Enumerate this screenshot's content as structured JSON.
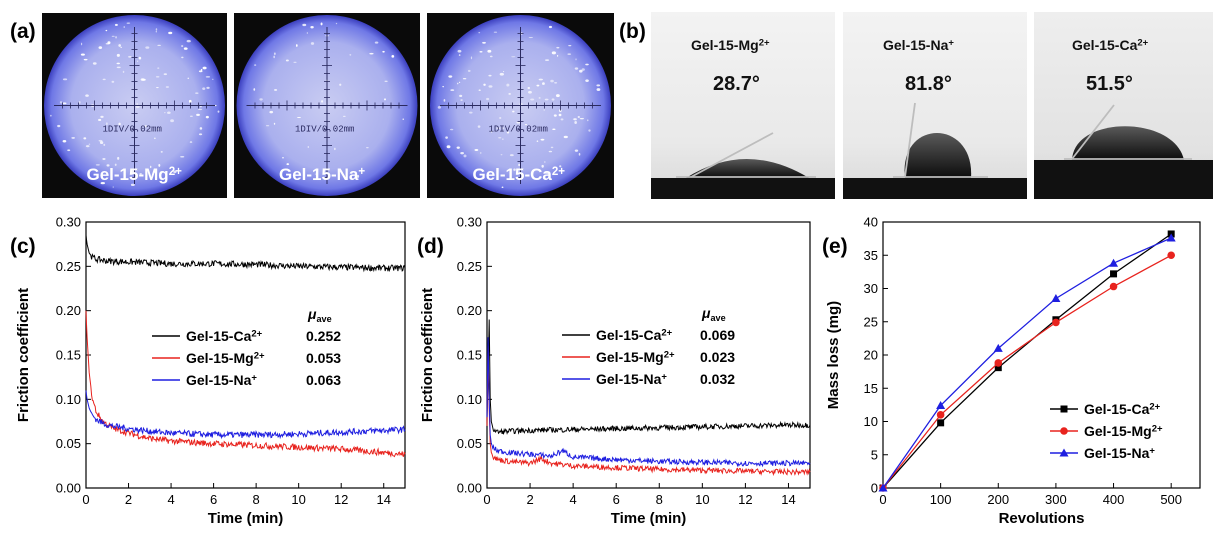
{
  "panel_labels": [
    "(a)",
    "(b)",
    "(c)",
    "(d)",
    "(e)"
  ],
  "panel_a": {
    "images": [
      {
        "label_base": "Gel-15-Mg",
        "label_sup": "2+",
        "scale": "1DIV/0.02mm"
      },
      {
        "label_base": "Gel-15-Na",
        "label_sup": "+",
        "scale": "1DIV/0.02mm"
      },
      {
        "label_base": "Gel-15-Ca",
        "label_sup": "2+",
        "scale": "1DIV/0.02mm"
      }
    ]
  },
  "panel_b": {
    "images": [
      {
        "label_base": "Gel-15-Mg",
        "label_sup": "2+",
        "angle": "28.7°"
      },
      {
        "label_base": "Gel-15-Na",
        "label_sup": "+",
        "angle": "81.8°"
      },
      {
        "label_base": "Gel-15-Ca",
        "label_sup": "2+",
        "angle": "51.5°"
      }
    ]
  },
  "colors": {
    "ca": "#000000",
    "mg": "#e8231e",
    "na": "#1f1fe0"
  },
  "chart_data": [
    {
      "panel": "(c)",
      "type": "line",
      "xlabel": "Time (min)",
      "ylabel": "Friction coefficient",
      "xlim": [
        0,
        15
      ],
      "ylim": [
        0.0,
        0.3
      ],
      "xticks": [
        "0",
        "2",
        "4",
        "6",
        "8",
        "10",
        "12",
        "14"
      ],
      "yticks": [
        "0.00",
        "0.05",
        "0.10",
        "0.15",
        "0.20",
        "0.25",
        "0.30"
      ],
      "legend_header": "μ",
      "legend_header_sub": "ave",
      "series": [
        {
          "key": "ca",
          "name_base": "Gel-15-Ca",
          "name_sup": "2+",
          "mu": "0.252",
          "x": [
            0,
            0.05,
            0.15,
            0.3,
            0.5,
            1,
            2,
            4,
            6,
            8,
            10,
            12,
            14,
            15
          ],
          "y": [
            0.285,
            0.275,
            0.265,
            0.26,
            0.258,
            0.256,
            0.255,
            0.253,
            0.253,
            0.252,
            0.25,
            0.249,
            0.248,
            0.248
          ]
        },
        {
          "key": "mg",
          "name_base": "Gel-15-Mg",
          "name_sup": "2+",
          "mu": "0.053",
          "x": [
            0,
            0.05,
            0.15,
            0.3,
            0.5,
            0.8,
            1.2,
            2,
            3,
            4,
            6,
            8,
            10,
            12,
            14,
            15
          ],
          "y": [
            0.2,
            0.17,
            0.13,
            0.1,
            0.085,
            0.075,
            0.068,
            0.062,
            0.056,
            0.053,
            0.05,
            0.048,
            0.046,
            0.044,
            0.04,
            0.038
          ]
        },
        {
          "key": "na",
          "name_base": "Gel-15-Na",
          "name_sup": "+",
          "mu": "0.063",
          "x": [
            0,
            0.05,
            0.15,
            0.3,
            0.5,
            0.8,
            1.2,
            2,
            3,
            4,
            6,
            8,
            10,
            12,
            14,
            15
          ],
          "y": [
            0.11,
            0.1,
            0.09,
            0.082,
            0.077,
            0.073,
            0.07,
            0.067,
            0.064,
            0.062,
            0.06,
            0.06,
            0.061,
            0.063,
            0.065,
            0.066
          ]
        }
      ]
    },
    {
      "panel": "(d)",
      "type": "line",
      "xlabel": "Time (min)",
      "ylabel": "Friction coefficient",
      "xlim": [
        0,
        15
      ],
      "ylim": [
        0.0,
        0.3
      ],
      "xticks": [
        "0",
        "2",
        "4",
        "6",
        "8",
        "10",
        "12",
        "14"
      ],
      "yticks": [
        "0.00",
        "0.05",
        "0.10",
        "0.15",
        "0.20",
        "0.25",
        "0.30"
      ],
      "legend_header": "μ",
      "legend_header_sub": "ave",
      "series": [
        {
          "key": "ca",
          "name_base": "Gel-15-Ca",
          "name_sup": "2+",
          "mu": "0.069",
          "x": [
            0,
            0.05,
            0.1,
            0.15,
            0.2,
            0.3,
            0.5,
            1,
            2,
            4,
            6,
            8,
            10,
            12,
            14,
            15
          ],
          "y": [
            0.08,
            0.12,
            0.19,
            0.1,
            0.075,
            0.066,
            0.063,
            0.064,
            0.065,
            0.066,
            0.067,
            0.068,
            0.069,
            0.07,
            0.071,
            0.071
          ]
        },
        {
          "key": "mg",
          "name_base": "Gel-15-Mg",
          "name_sup": "2+",
          "mu": "0.023",
          "x": [
            0,
            0.05,
            0.1,
            0.15,
            0.2,
            0.3,
            0.5,
            1,
            2,
            2.5,
            3,
            4,
            6,
            8,
            10,
            12,
            14,
            15
          ],
          "y": [
            0.07,
            0.16,
            0.09,
            0.05,
            0.04,
            0.035,
            0.032,
            0.03,
            0.028,
            0.033,
            0.028,
            0.025,
            0.023,
            0.021,
            0.02,
            0.019,
            0.018,
            0.018
          ]
        },
        {
          "key": "na",
          "name_base": "Gel-15-Na",
          "name_sup": "+",
          "mu": "0.032",
          "x": [
            0,
            0.05,
            0.1,
            0.15,
            0.2,
            0.3,
            0.5,
            1,
            2,
            3,
            3.5,
            4,
            6,
            8,
            10,
            12,
            14,
            15
          ],
          "y": [
            0.08,
            0.17,
            0.1,
            0.06,
            0.05,
            0.045,
            0.042,
            0.04,
            0.038,
            0.036,
            0.042,
            0.035,
            0.032,
            0.03,
            0.029,
            0.028,
            0.028,
            0.028
          ]
        }
      ]
    },
    {
      "panel": "(e)",
      "type": "line",
      "xlabel": "Revolutions",
      "ylabel": "Mass loss (mg)",
      "xlim": [
        0,
        550
      ],
      "ylim": [
        0,
        40
      ],
      "xticks": [
        "0",
        "100",
        "200",
        "300",
        "400",
        "500"
      ],
      "yticks": [
        "0",
        "5",
        "10",
        "15",
        "20",
        "25",
        "30",
        "35",
        "40"
      ],
      "legend_position": "bottom-right",
      "series": [
        {
          "key": "ca",
          "name_base": "Gel-15-Ca",
          "name_sup": "2+",
          "marker": "square",
          "x": [
            0,
            100,
            200,
            300,
            400,
            500
          ],
          "y": [
            0,
            9.8,
            18.1,
            25.3,
            32.2,
            38.2
          ]
        },
        {
          "key": "mg",
          "name_base": "Gel-15-Mg",
          "name_sup": "2+",
          "marker": "circle",
          "x": [
            0,
            100,
            200,
            300,
            400,
            500
          ],
          "y": [
            0,
            11.0,
            18.8,
            24.9,
            30.3,
            35.0
          ]
        },
        {
          "key": "na",
          "name_base": "Gel-15-Na",
          "name_sup": "+",
          "marker": "triangle",
          "x": [
            0,
            100,
            200,
            300,
            400,
            500
          ],
          "y": [
            0,
            12.4,
            21.0,
            28.5,
            33.8,
            37.6
          ]
        }
      ]
    }
  ]
}
